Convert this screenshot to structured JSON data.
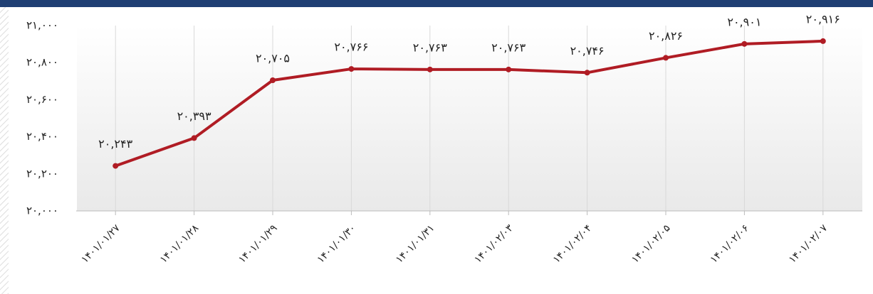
{
  "chart_data": {
    "type": "line",
    "categories": [
      "۱۴۰۱/۰۱/۲۷",
      "۱۴۰۱/۰۱/۲۸",
      "۱۴۰۱/۰۱/۲۹",
      "۱۴۰۱/۰۱/۳۰",
      "۱۴۰۱/۰۱/۳۱",
      "۱۴۰۱/۰۲/۰۳",
      "۱۴۰۱/۰۲/۰۴",
      "۱۴۰۱/۰۲/۰۵",
      "۱۴۰۱/۰۲/۰۶",
      "۱۴۰۱/۰۲/۰۷"
    ],
    "values": [
      20243,
      20393,
      20705,
      20766,
      20763,
      20763,
      20746,
      20826,
      20901,
      20916
    ],
    "value_labels": [
      "۲۰,۲۴۳",
      "۲۰,۳۹۳",
      "۲۰,۷۰۵",
      "۲۰,۷۶۶",
      "۲۰,۷۶۳",
      "۲۰,۷۶۳",
      "۲۰,۷۴۶",
      "۲۰,۸۲۶",
      "۲۰,۹۰۱",
      "۲۰,۹۱۶"
    ],
    "color": "#b01c24",
    "ylim": [
      20000,
      21000
    ],
    "yticks": [
      {
        "value": 20000,
        "label": "۲۰,۰۰۰"
      },
      {
        "value": 20200,
        "label": "۲۰,۲۰۰"
      },
      {
        "value": 20400,
        "label": "۲۰,۴۰۰"
      },
      {
        "value": 20600,
        "label": "۲۰,۶۰۰"
      },
      {
        "value": 20800,
        "label": "۲۰,۸۰۰"
      },
      {
        "value": 21000,
        "label": "۲۱,۰۰۰"
      }
    ],
    "grid": true
  }
}
